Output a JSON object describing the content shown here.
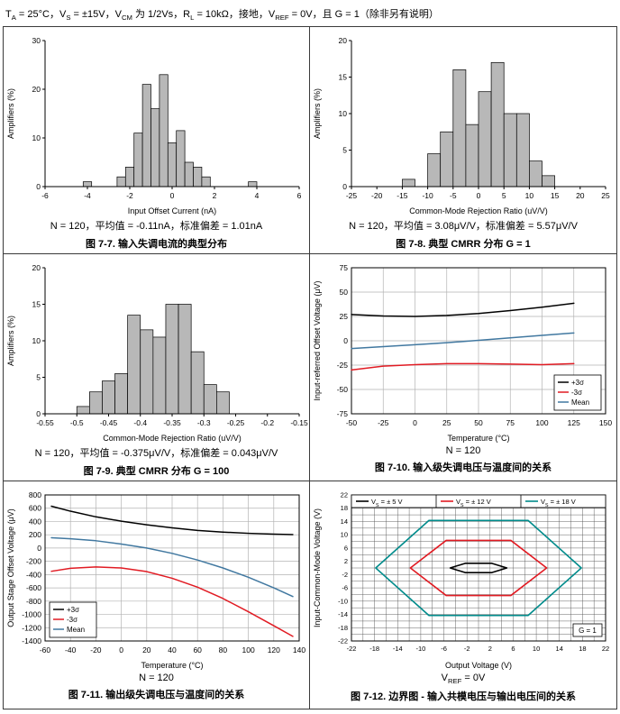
{
  "page": {
    "conditions": "T_{A} = 25°C，V_{S} = ±15V，V_{CM} 为 1/2Vs，R_{L} = 10kΩ，接地，V_{REF} = 0V，且 G = 1（除非另有说明）"
  },
  "colors": {
    "black": "#000000",
    "red": "#e11b23",
    "blue": "#4178a0",
    "teal": "#008b8b",
    "bar": "#b8b8b8",
    "grid": "#b3b3b3",
    "bgrid": "#555555",
    "frame": "#000000"
  },
  "chart_data": [
    {
      "figure": "7-7",
      "type": "histogram",
      "xlabel": "Input Offset Current (nA)",
      "ylabel": "Amplifiers (%)",
      "xlim": [
        -6,
        6
      ],
      "xticks": [
        -6,
        -4,
        -2,
        0,
        2,
        4,
        6
      ],
      "ylim": [
        0,
        30
      ],
      "yticks": [
        0,
        10,
        20,
        30
      ],
      "bin_width": 0.4,
      "bin_centers": [
        -4.0,
        -2.4,
        -2.0,
        -1.6,
        -1.2,
        -0.8,
        -0.4,
        0.0,
        0.4,
        0.8,
        1.2,
        1.6,
        3.8
      ],
      "bin_heights": [
        1,
        2,
        4,
        11,
        21,
        16,
        23,
        9,
        11.5,
        5,
        4,
        2,
        1
      ],
      "stats": "N = 120，平均值 = -0.11nA，标准偏差 = 1.01nA",
      "caption": "图 7-7. 输入失调电流的典型分布"
    },
    {
      "figure": "7-8",
      "type": "histogram",
      "xlabel": "Common-Mode Rejection Ratio (uV/V)",
      "ylabel": "Amplifiers (%)",
      "xlim": [
        -25,
        25
      ],
      "xticks": [
        -25,
        -20,
        -15,
        -10,
        -5,
        0,
        5,
        10,
        15,
        20,
        25
      ],
      "ylim": [
        0,
        20
      ],
      "yticks": [
        0,
        5,
        10,
        15,
        20
      ],
      "bin_width": 2.5,
      "bin_centers": [
        -13.75,
        -8.75,
        -6.25,
        -3.75,
        -1.25,
        1.25,
        3.75,
        6.25,
        8.75,
        11.25,
        13.75
      ],
      "bin_heights": [
        1,
        4.5,
        7.5,
        16,
        8.5,
        13,
        17,
        10,
        10,
        3.5,
        1.5
      ],
      "stats": "N = 120，平均值 = 3.08μV/V，标准偏差 = 5.57μV/V",
      "caption": "图 7-8. 典型 CMRR 分布 G = 1"
    },
    {
      "figure": "7-9",
      "type": "histogram",
      "xlabel": "Common-Mode Rejection Ratio (uV/V)",
      "ylabel": "Amplifiers (%)",
      "xlim": [
        -0.55,
        -0.15
      ],
      "xticks": [
        -0.55,
        -0.5,
        -0.45,
        -0.4,
        -0.35,
        -0.3,
        -0.25,
        -0.2,
        -0.15
      ],
      "ylim": [
        0,
        20
      ],
      "yticks": [
        0,
        5,
        10,
        15,
        20
      ],
      "bin_width": 0.02,
      "bin_centers": [
        -0.49,
        -0.47,
        -0.45,
        -0.43,
        -0.41,
        -0.39,
        -0.37,
        -0.35,
        -0.33,
        -0.31,
        -0.29,
        -0.27
      ],
      "bin_heights": [
        1,
        3,
        4.5,
        5.5,
        13.5,
        11.5,
        10.5,
        15,
        15,
        8.5,
        4,
        3
      ],
      "stats": "N = 120，平均值 = -0.375μV/V，标准偏差 = 0.043μV/V",
      "caption": "图 7-9. 典型 CMRR 分布 G = 100"
    },
    {
      "figure": "7-10",
      "type": "line",
      "xlabel": "Temperature (°C)",
      "ylabel": "Input-referred Offset Voltage (μV)",
      "xlim": [
        -50,
        150
      ],
      "xticks": [
        -50,
        -25,
        0,
        25,
        50,
        75,
        100,
        125,
        150
      ],
      "ylim": [
        -75,
        75
      ],
      "yticks": [
        -75,
        -50,
        -25,
        0,
        25,
        50,
        75
      ],
      "x": [
        -50,
        -25,
        0,
        25,
        50,
        75,
        100,
        125
      ],
      "series": [
        {
          "name": "+3σ",
          "color": "black",
          "y": [
            27,
            25.5,
            25,
            26,
            28,
            31,
            34.5,
            38.5
          ]
        },
        {
          "name": "-3σ",
          "color": "red",
          "y": [
            -30,
            -26,
            -24.5,
            -23.5,
            -23.5,
            -24,
            -24.5,
            -23.5
          ]
        },
        {
          "name": "Mean",
          "color": "blue",
          "y": [
            -8,
            -6,
            -4,
            -2,
            0.5,
            3,
            5.5,
            8
          ]
        }
      ],
      "legend_pos": "br",
      "stats": "N = 120",
      "caption": "图 7-10. 输入级失调电压与温度间的关系"
    },
    {
      "figure": "7-11",
      "type": "line",
      "xlabel": "Temperature (°C)",
      "ylabel": "Output Stage Offset Voltage (μV)",
      "xlim": [
        -60,
        140
      ],
      "xticks": [
        -60,
        -40,
        -20,
        0,
        20,
        40,
        60,
        80,
        100,
        120,
        140
      ],
      "ylim": [
        -1400,
        800
      ],
      "yticks": [
        -1400,
        -1200,
        -1000,
        -800,
        -600,
        -400,
        -200,
        0,
        200,
        400,
        600,
        800
      ],
      "x": [
        -55,
        -40,
        -20,
        0,
        20,
        40,
        60,
        80,
        100,
        120,
        135
      ],
      "series": [
        {
          "name": "+3σ",
          "color": "black",
          "y": [
            630,
            555,
            470,
            405,
            350,
            305,
            265,
            240,
            222,
            210,
            202
          ]
        },
        {
          "name": "-3σ",
          "color": "red",
          "y": [
            -350,
            -305,
            -285,
            -300,
            -355,
            -455,
            -590,
            -760,
            -960,
            -1170,
            -1330
          ]
        },
        {
          "name": "Mean",
          "color": "blue",
          "y": [
            155,
            140,
            110,
            60,
            0,
            -80,
            -180,
            -300,
            -440,
            -600,
            -730
          ]
        }
      ],
      "legend_pos": "bl",
      "stats": "N = 120",
      "caption": "图 7-11. 输出级失调电压与温度间的关系"
    },
    {
      "figure": "7-12",
      "type": "boundary",
      "xlabel": "Output Voltage (V)",
      "ylabel": "Input-Common-Mode Voltage (V)",
      "xlim": [
        -22,
        22
      ],
      "xticks": [
        -22,
        -18,
        -14,
        -10,
        -6,
        -2,
        2,
        6,
        10,
        14,
        18,
        22
      ],
      "ylim": [
        -22,
        22
      ],
      "yticks": [
        -22,
        -18,
        -14,
        -10,
        -6,
        -2,
        2,
        6,
        10,
        14,
        18,
        22
      ],
      "grid_step": 2,
      "polygons": [
        {
          "label": "V_{S} = ± 5 V",
          "color": "black",
          "points": [
            [
              -4.9,
              0
            ],
            [
              -2.3,
              1.4
            ],
            [
              2.3,
              1.4
            ],
            [
              4.9,
              0
            ],
            [
              2.3,
              -1.4
            ],
            [
              -2.3,
              -1.4
            ]
          ]
        },
        {
          "label": "V_{S} = ± 12 V",
          "color": "red",
          "points": [
            [
              -11.8,
              0
            ],
            [
              -5.6,
              8.3
            ],
            [
              5.6,
              8.3
            ],
            [
              11.8,
              0
            ],
            [
              5.6,
              -8.3
            ],
            [
              -5.6,
              -8.3
            ]
          ]
        },
        {
          "label": "V_{S} = ± 18 V",
          "color": "teal",
          "points": [
            [
              -17.8,
              0
            ],
            [
              -8.6,
              14.3
            ],
            [
              8.6,
              14.3
            ],
            [
              17.8,
              0
            ],
            [
              8.6,
              -14.3
            ],
            [
              -8.6,
              -14.3
            ]
          ]
        }
      ],
      "note": "G = 1",
      "stats": "V_{REF} = 0V",
      "caption": "图 7-12. 边界图 - 输入共模电压与输出电压间的关系"
    }
  ]
}
